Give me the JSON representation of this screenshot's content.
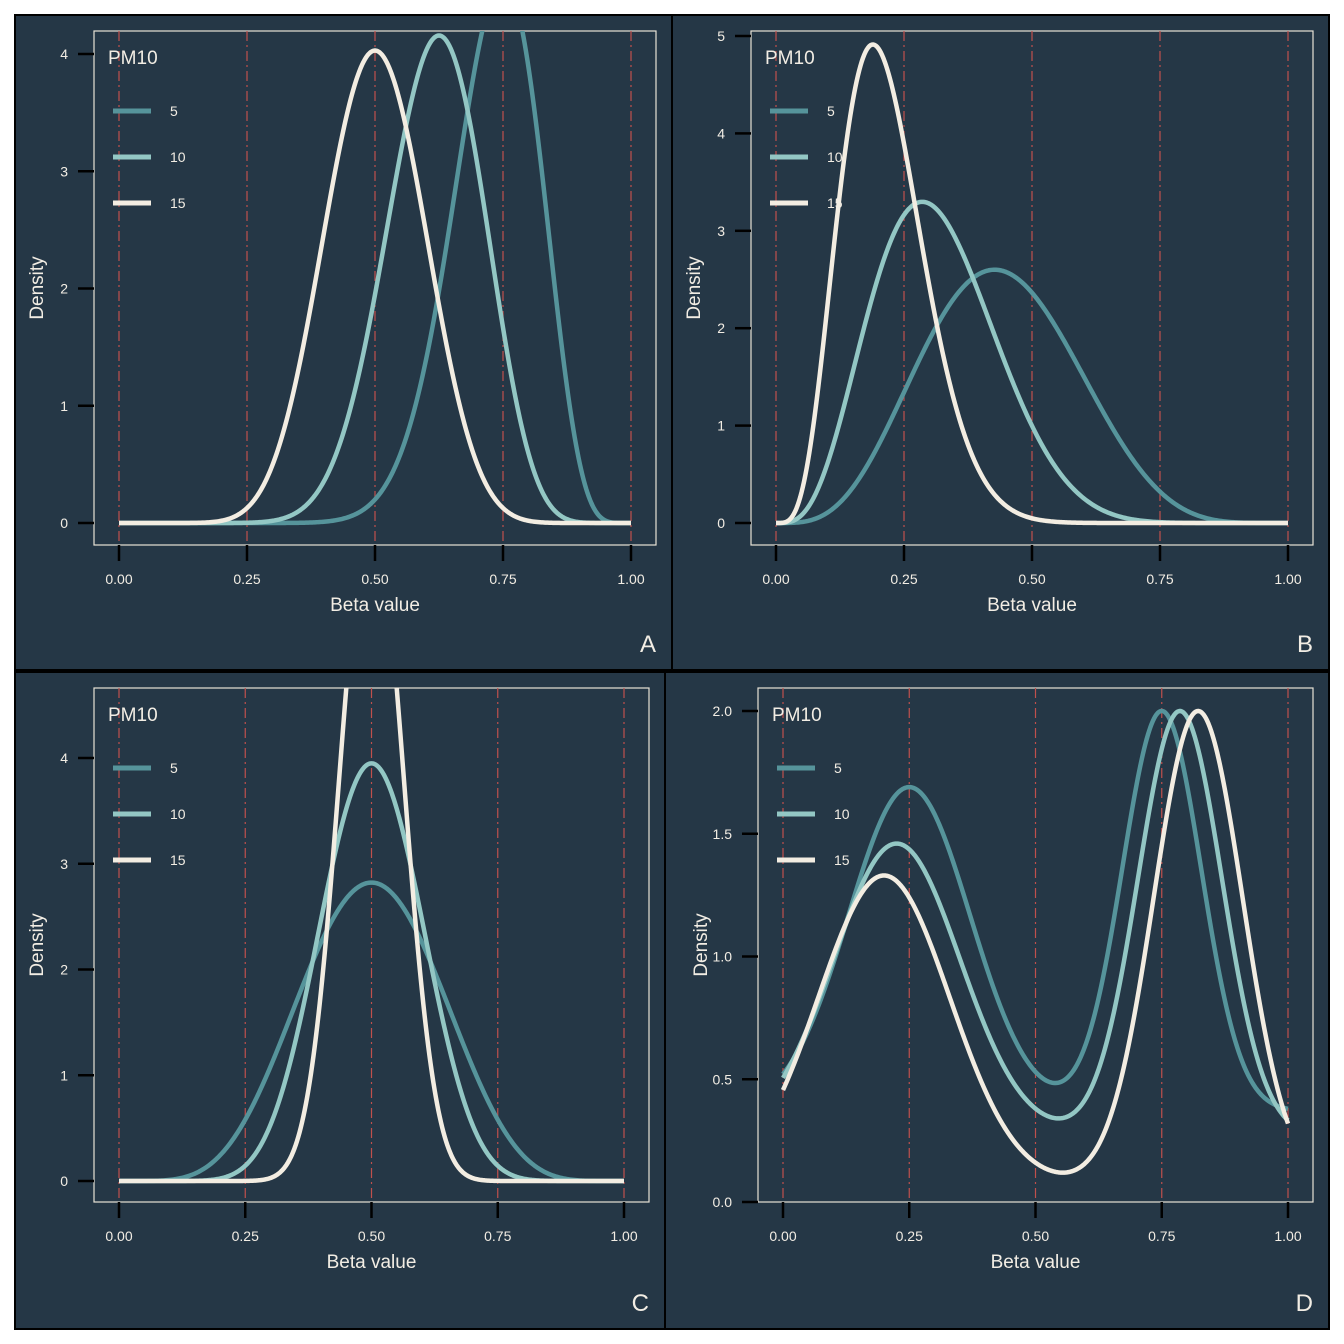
{
  "style": {
    "panel_bg": "#253746",
    "border": "#000000",
    "frame": "#e8e2d6",
    "text": "#f2ede4",
    "ref_line": "#c0504d",
    "series_colors": [
      "#56949b",
      "#93c7c4",
      "#f3ede2"
    ]
  },
  "chart_data": [
    {
      "type": "line",
      "panel_label": "A",
      "xlabel": "Beta value",
      "ylabel": "Density",
      "xlim": [
        0,
        1
      ],
      "ylim": [
        0,
        4
      ],
      "xticks": [
        "0.00",
        "0.25",
        "0.50",
        "0.75",
        "1.00"
      ],
      "yticks": [
        "0",
        "1",
        "2",
        "3",
        "4"
      ],
      "reference_lines_x": [
        0,
        0.25,
        0.5,
        0.75,
        1
      ],
      "legend_title": "PM10",
      "legend_position": "top-left",
      "series": [
        {
          "name": "5",
          "distribution": "beta",
          "alpha": 19,
          "beta": 7
        },
        {
          "name": "10",
          "distribution": "beta",
          "alpha": 16,
          "beta": 10
        },
        {
          "name": "15",
          "distribution": "beta",
          "alpha": 13,
          "beta": 13
        }
      ]
    },
    {
      "type": "line",
      "panel_label": "B",
      "xlabel": "Beta value",
      "ylabel": "Density",
      "xlim": [
        0,
        1
      ],
      "ylim": [
        0,
        5
      ],
      "xticks": [
        "0.00",
        "0.25",
        "0.50",
        "0.75",
        "1.00"
      ],
      "yticks": [
        "0",
        "1",
        "2",
        "3",
        "4",
        "5"
      ],
      "reference_lines_x": [
        0,
        0.25,
        0.5,
        0.75,
        1
      ],
      "legend_title": "PM10",
      "legend_position": "top-left",
      "series": [
        {
          "name": "5",
          "distribution": "beta",
          "alpha": 4.8,
          "beta": 6.1
        },
        {
          "name": "10",
          "distribution": "beta",
          "alpha": 4.6,
          "beta": 10
        },
        {
          "name": "15",
          "distribution": "beta",
          "alpha": 5.2,
          "beta": 19
        }
      ]
    },
    {
      "type": "line",
      "panel_label": "C",
      "xlabel": "Beta value",
      "ylabel": "Density",
      "xlim": [
        0,
        1
      ],
      "ylim": [
        0,
        4.5
      ],
      "xticks": [
        "0.00",
        "0.25",
        "0.50",
        "0.75",
        "1.00"
      ],
      "yticks": [
        "0",
        "1",
        "2",
        "3",
        "4"
      ],
      "reference_lines_x": [
        0,
        0.25,
        0.5,
        0.75,
        1
      ],
      "legend_title": "PM10",
      "legend_position": "top-left",
      "series": [
        {
          "name": "5",
          "distribution": "beta",
          "alpha": 6.5,
          "beta": 6.5
        },
        {
          "name": "10",
          "distribution": "beta",
          "alpha": 12.5,
          "beta": 12.5
        },
        {
          "name": "15",
          "distribution": "beta",
          "alpha": 32,
          "beta": 32
        }
      ]
    },
    {
      "type": "line",
      "panel_label": "D",
      "xlabel": "Beta value",
      "ylabel": "Density",
      "xlim": [
        0,
        1
      ],
      "ylim": [
        0,
        2
      ],
      "xticks": [
        "0.00",
        "0.25",
        "0.50",
        "0.75",
        "1.00"
      ],
      "yticks": [
        "0.0",
        "0.5",
        "1.0",
        "1.5",
        "2.0"
      ],
      "reference_lines_x": [
        0,
        0.25,
        0.5,
        0.75,
        1
      ],
      "legend_title": "PM10",
      "legend_position": "top-left",
      "series": [
        {
          "name": "5",
          "distribution": "bimodal",
          "mu1": 0.25,
          "sd1": 0.12,
          "h1": 1.32,
          "mu2": 0.75,
          "sd2": 0.078,
          "h2": 1.63,
          "base": 0.37
        },
        {
          "name": "10",
          "distribution": "bimodal",
          "mu1": 0.225,
          "sd1": 0.125,
          "h1": 1.19,
          "mu2": 0.786,
          "sd2": 0.083,
          "h2": 1.73,
          "base": 0.27
        },
        {
          "name": "15",
          "distribution": "bimodal",
          "mu1": 0.2,
          "sd1": 0.13,
          "h1": 1.26,
          "mu2": 0.822,
          "sd2": 0.088,
          "h2": 1.93,
          "base": 0.07
        }
      ]
    }
  ]
}
